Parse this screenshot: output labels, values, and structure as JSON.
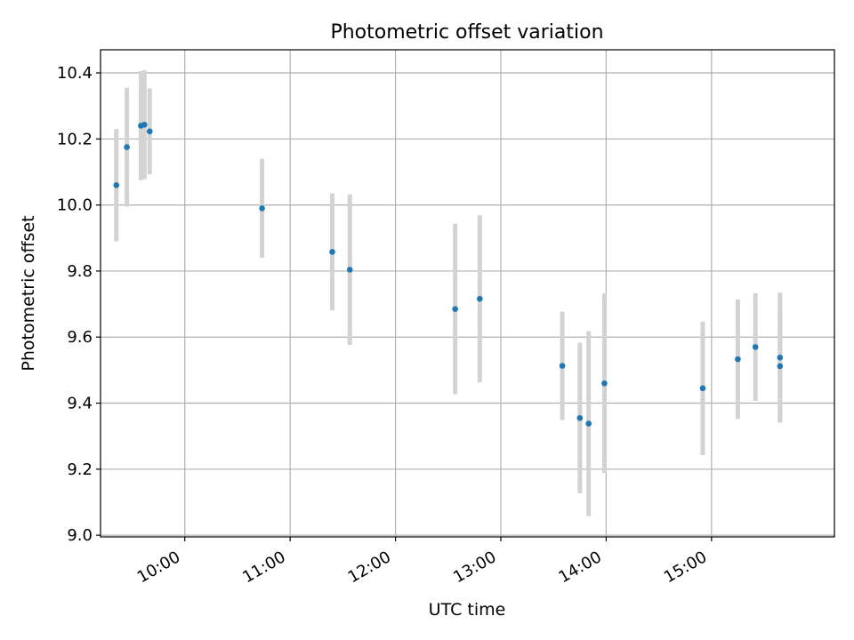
{
  "chart_data": {
    "type": "scatter",
    "title": "Photometric offset variation",
    "xlabel": "UTC time",
    "ylabel": "Photometric offset",
    "xlim": [
      "09:12",
      "16:10"
    ],
    "ylim": [
      8.995,
      10.47
    ],
    "xticks": [
      "10:00",
      "11:00",
      "12:00",
      "13:00",
      "14:00",
      "15:00"
    ],
    "yticks": [
      "9.0",
      "9.2",
      "9.4",
      "9.6",
      "9.8",
      "10.0",
      "10.2",
      "10.4"
    ],
    "grid": true,
    "marker_color": "#1f77b4",
    "errorbar_color": "#d3d3d3",
    "points": [
      {
        "x": "09:21",
        "y": 10.06,
        "err": 0.17
      },
      {
        "x": "09:27",
        "y": 10.175,
        "err": 0.18
      },
      {
        "x": "09:35",
        "y": 10.24,
        "err": 0.165
      },
      {
        "x": "09:37",
        "y": 10.243,
        "err": 0.165
      },
      {
        "x": "09:40",
        "y": 10.223,
        "err": 0.13
      },
      {
        "x": "10:44",
        "y": 9.99,
        "err": 0.15
      },
      {
        "x": "11:24",
        "y": 9.858,
        "err": 0.177
      },
      {
        "x": "11:34",
        "y": 9.804,
        "err": 0.228
      },
      {
        "x": "12:34",
        "y": 9.685,
        "err": 0.258
      },
      {
        "x": "12:48",
        "y": 9.716,
        "err": 0.253
      },
      {
        "x": "13:35",
        "y": 9.513,
        "err": 0.164
      },
      {
        "x": "13:45",
        "y": 9.355,
        "err": 0.228
      },
      {
        "x": "13:50",
        "y": 9.338,
        "err": 0.28
      },
      {
        "x": "13:59",
        "y": 9.46,
        "err": 0.272
      },
      {
        "x": "14:55",
        "y": 9.445,
        "err": 0.202
      },
      {
        "x": "15:15",
        "y": 9.533,
        "err": 0.181
      },
      {
        "x": "15:25",
        "y": 9.57,
        "err": 0.163
      },
      {
        "x": "15:39",
        "y": 9.538,
        "err": 0.197
      },
      {
        "x": "15:39",
        "y": 9.512,
        "err": 0.166
      }
    ]
  }
}
